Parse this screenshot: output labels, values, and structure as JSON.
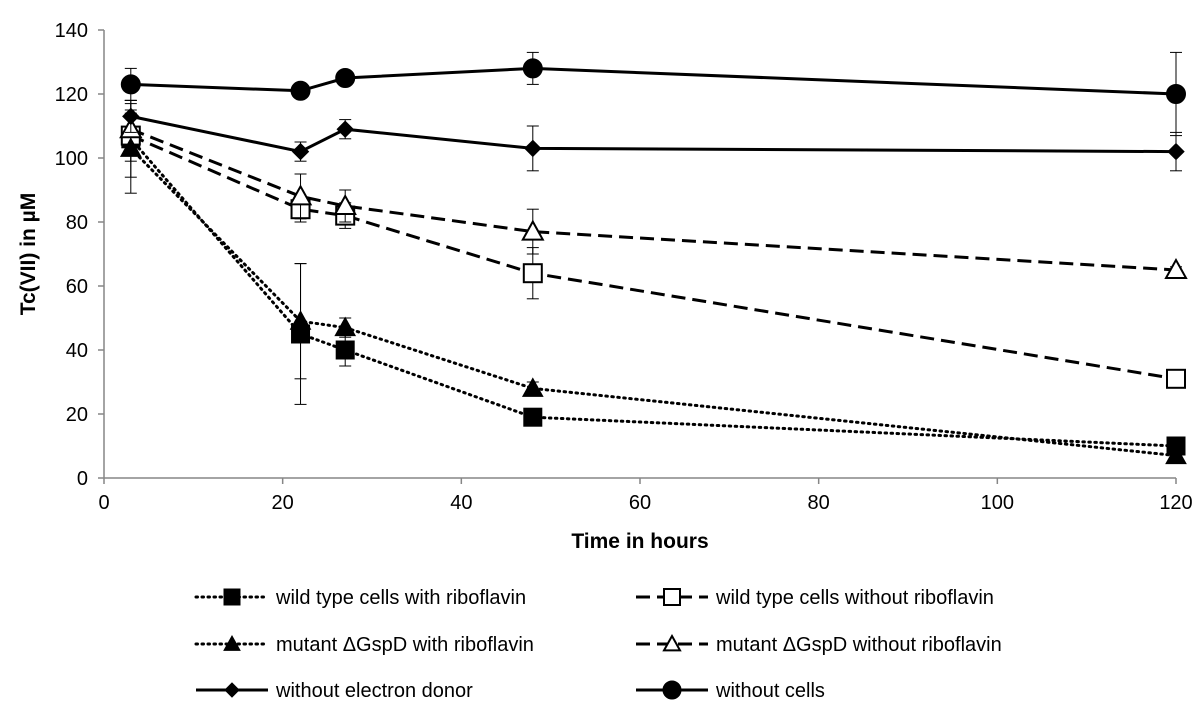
{
  "chart_data": {
    "type": "line",
    "title": "",
    "xlabel": "Time in hours",
    "ylabel": "Tc(VII) in µM",
    "xlim": [
      0,
      120
    ],
    "ylim": [
      0,
      140
    ],
    "xticks": [
      0,
      20,
      40,
      60,
      80,
      100,
      120
    ],
    "yticks": [
      0,
      20,
      40,
      60,
      80,
      100,
      120,
      140
    ],
    "grid": false,
    "legend_position": "bottom",
    "series": [
      {
        "name": "wild type cells with riboflavin",
        "line": "dotted",
        "marker": "square",
        "filled": true,
        "x": [
          3,
          22,
          27,
          48,
          120
        ],
        "y": [
          106,
          45,
          40,
          19,
          10
        ],
        "err": [
          12,
          22,
          5,
          2,
          2
        ]
      },
      {
        "name": "wild type cells without riboflavin",
        "line": "dashed",
        "marker": "square",
        "filled": false,
        "x": [
          3,
          22,
          27,
          48,
          120
        ],
        "y": [
          107,
          84,
          82,
          64,
          31
        ],
        "err": [
          8,
          4,
          4,
          8,
          2
        ]
      },
      {
        "name": "mutant ΔGspD with riboflavin",
        "line": "dotted",
        "marker": "triangle",
        "filled": true,
        "x": [
          3,
          22,
          27,
          48,
          120
        ],
        "y": [
          103,
          49,
          47,
          28,
          7
        ],
        "err": [
          14,
          18,
          3,
          2,
          2
        ]
      },
      {
        "name": "mutant ΔGspD without riboflavin",
        "line": "dashed",
        "marker": "triangle",
        "filled": false,
        "x": [
          3,
          22,
          27,
          48,
          120
        ],
        "y": [
          109,
          88,
          85,
          77,
          65
        ],
        "err": [
          5,
          7,
          5,
          7,
          1
        ]
      },
      {
        "name": "without electron donor",
        "line": "solid",
        "marker": "diamond",
        "filled": true,
        "x": [
          3,
          22,
          27,
          48,
          120
        ],
        "y": [
          113,
          102,
          109,
          103,
          102
        ],
        "err": [
          5,
          3,
          3,
          7,
          6
        ]
      },
      {
        "name": "without cells",
        "line": "solid",
        "marker": "circle",
        "filled": true,
        "x": [
          3,
          22,
          27,
          48,
          120
        ],
        "y": [
          123,
          121,
          125,
          128,
          120
        ],
        "err": [
          5,
          2,
          2,
          5,
          13
        ]
      }
    ]
  }
}
